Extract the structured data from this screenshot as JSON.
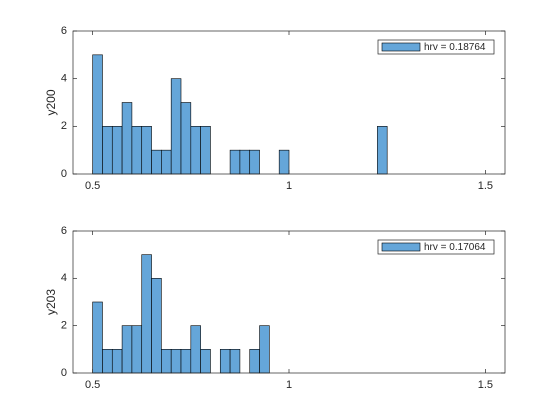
{
  "chart_data": [
    {
      "type": "histogram",
      "ylabel": "y200",
      "bins": [
        0.5,
        0.525,
        0.55,
        0.575,
        0.6,
        0.625,
        0.65,
        0.675,
        0.7,
        0.725,
        0.75,
        0.775,
        0.8,
        0.825,
        0.85,
        0.875,
        0.9,
        0.925,
        0.95,
        0.975,
        1.0,
        1.025,
        1.05,
        1.075,
        1.1,
        1.125,
        1.15,
        1.175,
        1.2,
        1.225,
        1.25
      ],
      "series": [
        {
          "name": "hrv = 0.18764",
          "color": "#65a6d9",
          "values": [
            5,
            2,
            2,
            3,
            2,
            2,
            1,
            1,
            4,
            3,
            2,
            2,
            0,
            0,
            1,
            1,
            1,
            0,
            0,
            1,
            0,
            0,
            0,
            0,
            0,
            0,
            0,
            0,
            0,
            2
          ]
        }
      ],
      "xlim": [
        0.45,
        1.55
      ],
      "xticks": [
        0.5,
        1,
        1.5
      ],
      "ylim": [
        0,
        6
      ],
      "yticks": [
        0,
        2,
        4,
        6
      ],
      "legend": "northeast"
    },
    {
      "type": "histogram",
      "ylabel": "y203",
      "bins": [
        0.5,
        0.525,
        0.55,
        0.575,
        0.6,
        0.625,
        0.65,
        0.675,
        0.7,
        0.725,
        0.75,
        0.775,
        0.8,
        0.825,
        0.85,
        0.875,
        0.9,
        0.925,
        0.95
      ],
      "series": [
        {
          "name": "hrv = 0.17064",
          "color": "#65a6d9",
          "values": [
            3,
            1,
            1,
            2,
            2,
            5,
            4,
            1,
            1,
            1,
            2,
            1,
            0,
            1,
            1,
            0,
            1,
            2
          ]
        }
      ],
      "xlim": [
        0.45,
        1.55
      ],
      "xticks": [
        0.5,
        1,
        1.5
      ],
      "ylim": [
        0,
        6
      ],
      "yticks": [
        0,
        2,
        4,
        6
      ],
      "legend": "northeast"
    }
  ]
}
